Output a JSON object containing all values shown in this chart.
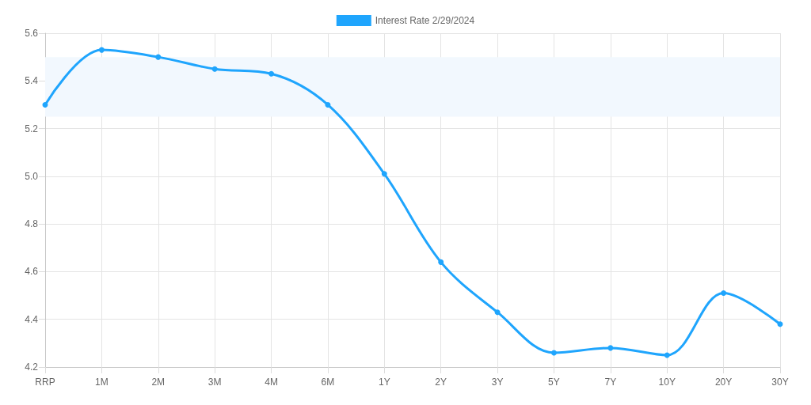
{
  "chart_data": {
    "type": "line",
    "categories": [
      "RRP",
      "1M",
      "2M",
      "3M",
      "4M",
      "6M",
      "1Y",
      "2Y",
      "3Y",
      "5Y",
      "7Y",
      "10Y",
      "20Y",
      "30Y"
    ],
    "series": [
      {
        "name": "Interest Rate 2/29/2024",
        "color": "#1fa5fd",
        "values": [
          5.3,
          5.53,
          5.5,
          5.45,
          5.43,
          5.3,
          5.01,
          4.64,
          4.43,
          4.26,
          4.28,
          4.25,
          4.51,
          4.38
        ]
      }
    ],
    "ylim": [
      4.2,
      5.6
    ],
    "yticks": [
      4.2,
      4.4,
      4.6,
      4.8,
      {
        "value": 5,
        "label": "5.0"
      },
      5.2,
      5.4,
      5.6
    ],
    "bands": [
      {
        "axis": "y",
        "from": 5.25,
        "to": 5.5,
        "color": "#f2f8fe"
      }
    ],
    "grid": true,
    "legend": "top",
    "marker": "circle"
  }
}
